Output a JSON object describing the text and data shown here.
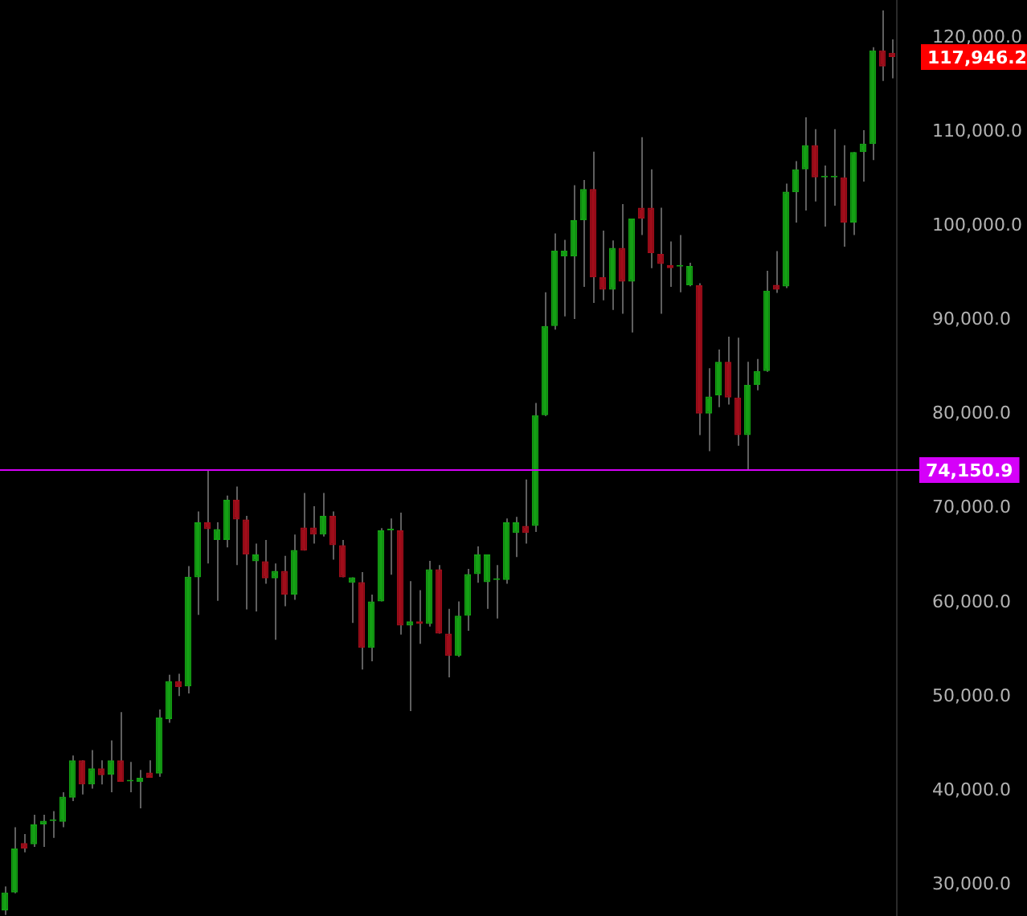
{
  "chart_data": {
    "type": "candlestick",
    "categories": [
      null,
      null,
      null,
      null,
      null,
      null,
      null,
      null,
      null,
      null,
      null,
      null,
      null,
      null,
      null,
      null,
      null,
      null,
      null,
      null,
      null,
      null,
      null,
      null,
      null,
      null,
      null,
      null,
      null,
      null,
      null,
      null,
      null,
      null,
      null,
      null,
      null,
      null,
      null,
      null,
      null,
      null,
      null,
      null,
      null,
      null,
      null,
      null,
      null,
      null,
      null,
      null,
      null,
      null,
      null,
      null,
      null,
      null,
      null,
      null,
      null,
      null,
      null,
      null,
      null,
      null,
      null,
      null,
      null,
      null,
      null,
      null,
      null,
      null,
      null,
      null,
      null,
      null,
      null,
      null,
      null,
      null,
      null,
      null,
      null,
      null,
      null,
      null,
      null,
      null,
      null,
      null,
      null
    ],
    "ohlc": [
      [
        27300,
        29830,
        26800,
        29200
      ],
      [
        29200,
        36140,
        29100,
        33870
      ],
      [
        34440,
        35400,
        33470,
        33870
      ],
      [
        34320,
        37450,
        34040,
        36430
      ],
      [
        36430,
        37450,
        34040,
        36820
      ],
      [
        36800,
        37840,
        35000,
        36850
      ],
      [
        36700,
        39840,
        36140,
        39380
      ],
      [
        39260,
        43750,
        38900,
        43240
      ],
      [
        43240,
        43240,
        39610,
        40680
      ],
      [
        40680,
        44320,
        40230,
        42390
      ],
      [
        42390,
        43240,
        40680,
        41650
      ],
      [
        41710,
        45340,
        39840,
        43240
      ],
      [
        43240,
        48360,
        40960,
        40960
      ],
      [
        41000,
        43070,
        39840,
        41050
      ],
      [
        40960,
        42220,
        38130,
        41370
      ],
      [
        41940,
        43240,
        41370,
        41370
      ],
      [
        41820,
        48640,
        41480,
        47780
      ],
      [
        47610,
        52330,
        47220,
        51650
      ],
      [
        51650,
        52440,
        50060,
        51020
      ],
      [
        51080,
        63870,
        50340,
        62730
      ],
      [
        62680,
        69670,
        58690,
        68530
      ],
      [
        68530,
        74000,
        64140,
        67790
      ],
      [
        66650,
        68530,
        60170,
        67790
      ],
      [
        66650,
        71370,
        65850,
        70910
      ],
      [
        70910,
        72330,
        63980,
        68810
      ],
      [
        68810,
        69200,
        59270,
        65110
      ],
      [
        64380,
        66260,
        59040,
        65110
      ],
      [
        64380,
        66650,
        62000,
        62560
      ],
      [
        62560,
        64140,
        56030,
        63360
      ],
      [
        63360,
        64950,
        59610,
        60850
      ],
      [
        60850,
        67210,
        60290,
        65580
      ],
      [
        67960,
        71640,
        65520,
        65520
      ],
      [
        67960,
        70230,
        66260,
        67210
      ],
      [
        67210,
        71640,
        67000,
        69210
      ],
      [
        69210,
        69670,
        64560,
        66090
      ],
      [
        66090,
        66650,
        62680,
        62680
      ],
      [
        62100,
        62680,
        57840,
        62680
      ],
      [
        62170,
        63240,
        52890,
        55180
      ],
      [
        55180,
        60850,
        53750,
        60120
      ],
      [
        60120,
        67900,
        60120,
        67670
      ],
      [
        67670,
        68920,
        62950,
        67700
      ],
      [
        67670,
        69550,
        56590,
        57560
      ],
      [
        57560,
        62270,
        48460,
        58010
      ],
      [
        58010,
        61310,
        55620,
        57730
      ],
      [
        57730,
        64430,
        57440,
        63530
      ],
      [
        63530,
        63980,
        56710,
        56710
      ],
      [
        56710,
        59320,
        52040,
        54330
      ],
      [
        54330,
        60120,
        54220,
        58590
      ],
      [
        58590,
        63580,
        56990,
        63020
      ],
      [
        63020,
        65970,
        62100,
        65110
      ],
      [
        62170,
        65110,
        59320,
        65110
      ],
      [
        62390,
        63980,
        58300,
        62420
      ],
      [
        62390,
        68920,
        62000,
        68530
      ],
      [
        67390,
        69090,
        64830,
        68530
      ],
      [
        68130,
        73070,
        66260,
        67390
      ],
      [
        68130,
        81190,
        67500,
        79890
      ],
      [
        79890,
        92950,
        79800,
        89370
      ],
      [
        89370,
        99210,
        88980,
        97380
      ],
      [
        96770,
        98520,
        90390,
        97380
      ],
      [
        96770,
        104320,
        90120,
        100620
      ],
      [
        100620,
        104880,
        93530,
        103930
      ],
      [
        103930,
        107900,
        91820,
        94550
      ],
      [
        94550,
        99500,
        92100,
        93240
      ],
      [
        93240,
        98470,
        91070,
        97670
      ],
      [
        97670,
        102330,
        90680,
        94090
      ],
      [
        94090,
        100790,
        88690,
        100790
      ],
      [
        101930,
        109430,
        99030,
        100790
      ],
      [
        101930,
        106020,
        95510,
        97110
      ],
      [
        97040,
        101930,
        90680,
        95970
      ],
      [
        95850,
        98350,
        93530,
        95510
      ],
      [
        95680,
        99030,
        92950,
        95720
      ],
      [
        93700,
        96090,
        93600,
        95740
      ],
      [
        93700,
        93920,
        77780,
        80060
      ],
      [
        80060,
        84890,
        76080,
        81870
      ],
      [
        82000,
        86880,
        80750,
        85570
      ],
      [
        85570,
        88240,
        81020,
        81770
      ],
      [
        81770,
        88130,
        76650,
        77780
      ],
      [
        77780,
        85570,
        74030,
        83120
      ],
      [
        83120,
        85860,
        82550,
        84600
      ],
      [
        84600,
        95230,
        84500,
        93120
      ],
      [
        93750,
        97330,
        92900,
        93240
      ],
      [
        93580,
        104490,
        93400,
        103640
      ],
      [
        103580,
        106880,
        100350,
        106020
      ],
      [
        106020,
        111530,
        101640,
        108580
      ],
      [
        108580,
        110280,
        102610,
        105170
      ],
      [
        105170,
        106420,
        99940,
        105250
      ],
      [
        105170,
        110280,
        102160,
        105250
      ],
      [
        105170,
        108580,
        97790,
        100350
      ],
      [
        100350,
        107850,
        99030,
        107850
      ],
      [
        107850,
        110170,
        104710,
        108750
      ],
      [
        108700,
        118980,
        107000,
        118640
      ],
      [
        118640,
        122900,
        115400,
        116930
      ],
      [
        118400,
        119830,
        115690,
        117946.2
      ]
    ],
    "ylim": [
      26800,
      123900
    ],
    "yticks": [
      {
        "value": 30000,
        "label": "30,000.0"
      },
      {
        "value": 40000,
        "label": "40,000.0"
      },
      {
        "value": 50000,
        "label": "50,000.0"
      },
      {
        "value": 60000,
        "label": "60,000.0"
      },
      {
        "value": 70000,
        "label": "70,000.0"
      },
      {
        "value": 80000,
        "label": "80,000.0"
      },
      {
        "value": 90000,
        "label": "90,000.0"
      },
      {
        "value": 100000,
        "label": "100,000.0"
      },
      {
        "value": 110000,
        "label": "110,000.0"
      },
      {
        "value": 120000,
        "label": "120,000.0"
      }
    ],
    "ref_lines": [
      {
        "axis": "y",
        "value": 74150.9,
        "label": "74,150.9",
        "color": "#d500f9"
      }
    ],
    "annotations": [
      "117,946.2"
    ],
    "grid": false
  }
}
